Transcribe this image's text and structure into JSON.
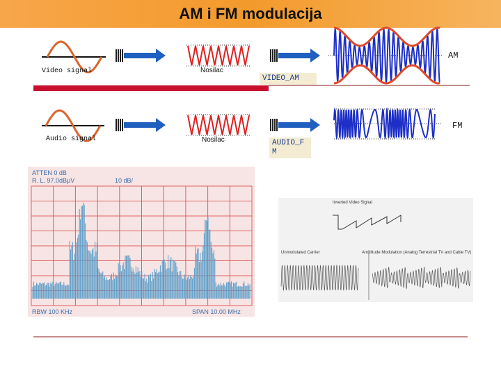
{
  "title": "AM i FM modulacija",
  "row_am": {
    "source": "Video signal",
    "carrier": "Nosilac",
    "output": "VIDEO_AM",
    "result": "AM"
  },
  "row_fm": {
    "source": "Audio signal",
    "carrier": "Nosilac",
    "output": "AUDIO_FM",
    "result": "FM"
  },
  "spectrum": {
    "atten": "ATTEN 0 dB",
    "ref_level": "R. L. 97.0dBμV",
    "scale": "10 dB/",
    "rbw": "RBW 100 KHz",
    "span": "SPAN 10.00 MHz"
  },
  "scope": {
    "inverted": "Inverted Video Signal",
    "carrier": "Unmodulated Carrier",
    "modulated": "Amplitude Modulation (Analog Terrestrial TV and Cable TV)"
  }
}
